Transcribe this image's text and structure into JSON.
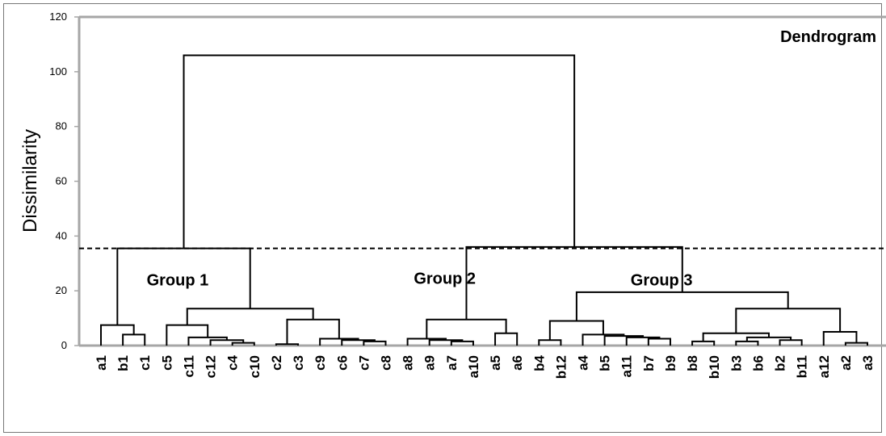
{
  "chart_data": {
    "type": "dendrogram",
    "title": "Dendrogram",
    "xlabel": "",
    "ylabel": "Dissimilarity",
    "ylim": [
      0,
      120
    ],
    "yticks": [
      0,
      20,
      40,
      60,
      80,
      100,
      120
    ],
    "grid": false,
    "threshold": 35.5,
    "leaves": [
      "a1",
      "b1",
      "c1",
      "c5",
      "c11",
      "c12",
      "c4",
      "c10",
      "c2",
      "c3",
      "c9",
      "c6",
      "c7",
      "c8",
      "a8",
      "a9",
      "a7",
      "a10",
      "a5",
      "a6",
      "b4",
      "b12",
      "a4",
      "b5",
      "a11",
      "b7",
      "b9",
      "b8",
      "b10",
      "b3",
      "b6",
      "b2",
      "b11",
      "a12",
      "a2",
      "a3"
    ],
    "merges": [
      {
        "left": "b1",
        "right": "c1",
        "height": 4
      },
      {
        "left": "a1",
        "right": "m0",
        "height": 7.5
      },
      {
        "left": "c4",
        "right": "c10",
        "height": 1
      },
      {
        "left": "c12",
        "right": "m2",
        "height": 2
      },
      {
        "left": "c11",
        "right": "m3",
        "height": 3
      },
      {
        "left": "c5",
        "right": "m4",
        "height": 7.5
      },
      {
        "left": "c2",
        "right": "c3",
        "height": 0.5
      },
      {
        "left": "c7",
        "right": "c8",
        "height": 1.5
      },
      {
        "left": "c6",
        "right": "m7",
        "height": 2
      },
      {
        "left": "c9",
        "right": "m8",
        "height": 2.5
      },
      {
        "left": "m6",
        "right": "m9",
        "height": 9.5
      },
      {
        "left": "m5",
        "right": "m10",
        "height": 13.5
      },
      {
        "left": "m1",
        "right": "m11",
        "height": 35.5
      },
      {
        "left": "a7",
        "right": "a10",
        "height": 1.5
      },
      {
        "left": "a9",
        "right": "m13",
        "height": 2
      },
      {
        "left": "a8",
        "right": "m14",
        "height": 2.5
      },
      {
        "left": "a5",
        "right": "a6",
        "height": 4.5
      },
      {
        "left": "m15",
        "right": "m16",
        "height": 9.5
      },
      {
        "left": "b4",
        "right": "b12",
        "height": 2
      },
      {
        "left": "b7",
        "right": "b9",
        "height": 2.5
      },
      {
        "left": "a11",
        "right": "m19",
        "height": 3
      },
      {
        "left": "b5",
        "right": "m20",
        "height": 3.5
      },
      {
        "left": "a4",
        "right": "m21",
        "height": 4
      },
      {
        "left": "m18",
        "right": "m22",
        "height": 9
      },
      {
        "left": "b8",
        "right": "b10",
        "height": 1.5
      },
      {
        "left": "b3",
        "right": "b6",
        "height": 1.5
      },
      {
        "left": "b2",
        "right": "b11",
        "height": 2
      },
      {
        "left": "m25",
        "right": "m26",
        "height": 3
      },
      {
        "left": "m24",
        "right": "m27",
        "height": 4.5
      },
      {
        "left": "a2",
        "right": "a3",
        "height": 1
      },
      {
        "left": "a12",
        "right": "m29",
        "height": 5
      },
      {
        "left": "m28",
        "right": "m30",
        "height": 13.5
      },
      {
        "left": "m23",
        "right": "m31",
        "height": 19.5
      },
      {
        "left": "m17",
        "right": "m32",
        "height": 36
      },
      {
        "left": "m12",
        "right": "m33",
        "height": 106
      }
    ],
    "annotations": [
      {
        "text": "Group 1",
        "x_leaf": 3.5,
        "y": 22
      },
      {
        "text": "Group 2",
        "x_leaf": 15.7,
        "y": 22.5
      },
      {
        "text": "Group 3",
        "x_leaf": 25.6,
        "y": 22
      }
    ]
  }
}
